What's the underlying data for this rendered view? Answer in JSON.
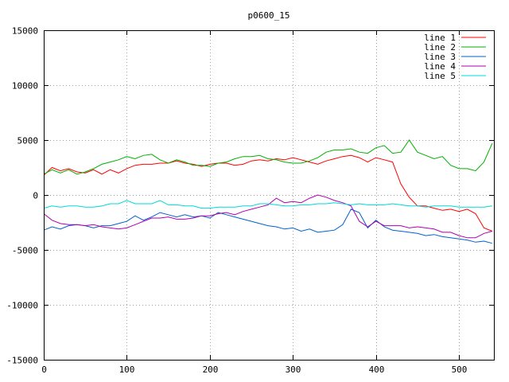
{
  "chart_data": {
    "type": "line",
    "title": "p0600_15",
    "xlabel": "",
    "ylabel": "",
    "xlim": [
      0,
      542
    ],
    "ylim": [
      -15000,
      15000
    ],
    "grid": true,
    "legend_position": "top-right",
    "xticks": [
      0,
      100,
      200,
      300,
      400,
      500
    ],
    "yticks": [
      -15000,
      -10000,
      -5000,
      0,
      5000,
      10000,
      15000
    ],
    "series": [
      {
        "name": "line 1",
        "color": "#ff0000",
        "x": [
          0,
          10,
          20,
          30,
          40,
          50,
          60,
          70,
          80,
          90,
          100,
          110,
          120,
          130,
          140,
          150,
          160,
          170,
          180,
          190,
          200,
          210,
          220,
          230,
          240,
          250,
          260,
          270,
          280,
          290,
          300,
          310,
          320,
          330,
          340,
          350,
          360,
          370,
          380,
          390,
          400,
          410,
          420,
          430,
          440,
          450,
          460,
          470,
          480,
          490,
          500,
          510,
          520,
          530,
          540
        ],
        "y": [
          1800,
          2500,
          2200,
          2400,
          2100,
          2000,
          2300,
          1900,
          2300,
          2000,
          2400,
          2700,
          2800,
          2800,
          2900,
          2900,
          3100,
          2900,
          2800,
          2600,
          2800,
          2900,
          2900,
          2700,
          2800,
          3100,
          3200,
          3100,
          3300,
          3200,
          3400,
          3200,
          3000,
          2800,
          3100,
          3300,
          3500,
          3600,
          3400,
          3000,
          3400,
          3200,
          3000,
          1000,
          -200,
          -1000,
          -1000,
          -1200,
          -1400,
          -1300,
          -1500,
          -1300,
          -1700,
          -3000,
          -3300
        ]
      },
      {
        "name": "line 2",
        "color": "#00b000",
        "x": [
          0,
          10,
          20,
          30,
          40,
          50,
          60,
          70,
          80,
          90,
          100,
          110,
          120,
          130,
          140,
          150,
          160,
          170,
          180,
          190,
          200,
          210,
          220,
          230,
          240,
          250,
          260,
          270,
          280,
          290,
          300,
          310,
          320,
          330,
          340,
          350,
          360,
          370,
          380,
          390,
          400,
          410,
          420,
          430,
          440,
          450,
          460,
          470,
          480,
          490,
          500,
          510,
          520,
          530,
          540
        ],
        "y": [
          1900,
          2300,
          2000,
          2300,
          1900,
          2100,
          2400,
          2800,
          3000,
          3200,
          3500,
          3300,
          3600,
          3700,
          3200,
          2900,
          3200,
          3000,
          2700,
          2700,
          2600,
          2900,
          3000,
          3300,
          3500,
          3500,
          3600,
          3300,
          3200,
          3000,
          2900,
          2900,
          3100,
          3400,
          3900,
          4100,
          4100,
          4200,
          3900,
          3800,
          4300,
          4500,
          3800,
          3900,
          5000,
          3900,
          3600,
          3300,
          3500,
          2700,
          2400,
          2400,
          2200,
          3000,
          4700
        ]
      },
      {
        "name": "line 3",
        "color": "#0060d0",
        "x": [
          0,
          10,
          20,
          30,
          40,
          50,
          60,
          70,
          80,
          90,
          100,
          110,
          120,
          130,
          140,
          150,
          160,
          170,
          180,
          190,
          200,
          210,
          220,
          230,
          240,
          250,
          260,
          270,
          280,
          290,
          300,
          310,
          320,
          330,
          340,
          350,
          360,
          370,
          380,
          390,
          400,
          410,
          420,
          430,
          440,
          450,
          460,
          470,
          480,
          490,
          500,
          510,
          520,
          530,
          540
        ],
        "y": [
          -3200,
          -2900,
          -3100,
          -2800,
          -2700,
          -2800,
          -3000,
          -2800,
          -2800,
          -2600,
          -2400,
          -1900,
          -2300,
          -2000,
          -1600,
          -1800,
          -2000,
          -1800,
          -2000,
          -1900,
          -2100,
          -1600,
          -1800,
          -2000,
          -2200,
          -2400,
          -2600,
          -2800,
          -2900,
          -3100,
          -3000,
          -3300,
          -3100,
          -3400,
          -3300,
          -3200,
          -2700,
          -1300,
          -1600,
          -3000,
          -2300,
          -2900,
          -3200,
          -3300,
          -3400,
          -3500,
          -3700,
          -3600,
          -3800,
          -3900,
          -4000,
          -4100,
          -4300,
          -4200,
          -4400
        ]
      },
      {
        "name": "line 4",
        "color": "#b000b0",
        "x": [
          0,
          10,
          20,
          30,
          40,
          50,
          60,
          70,
          80,
          90,
          100,
          110,
          120,
          130,
          140,
          150,
          160,
          170,
          180,
          190,
          200,
          210,
          220,
          230,
          240,
          250,
          260,
          270,
          280,
          290,
          300,
          310,
          320,
          330,
          340,
          350,
          360,
          370,
          380,
          390,
          400,
          410,
          420,
          430,
          440,
          450,
          460,
          470,
          480,
          490,
          500,
          510,
          520,
          530,
          540
        ],
        "y": [
          -1700,
          -2300,
          -2600,
          -2700,
          -2700,
          -2800,
          -2700,
          -2900,
          -3000,
          -3100,
          -3000,
          -2700,
          -2400,
          -2100,
          -2100,
          -2000,
          -2200,
          -2200,
          -2100,
          -1900,
          -1900,
          -1700,
          -1600,
          -1800,
          -1500,
          -1300,
          -1100,
          -900,
          -300,
          -700,
          -600,
          -700,
          -300,
          0,
          -200,
          -500,
          -700,
          -1000,
          -2400,
          -2900,
          -2400,
          -2800,
          -2800,
          -2800,
          -3000,
          -2900,
          -3000,
          -3100,
          -3400,
          -3400,
          -3700,
          -3900,
          -3900,
          -3500,
          -3300
        ]
      },
      {
        "name": "line 5",
        "color": "#00d8d8",
        "x": [
          0,
          10,
          20,
          30,
          40,
          50,
          60,
          70,
          80,
          90,
          100,
          110,
          120,
          130,
          140,
          150,
          160,
          170,
          180,
          190,
          200,
          210,
          220,
          230,
          240,
          250,
          260,
          270,
          280,
          290,
          300,
          310,
          320,
          330,
          340,
          350,
          360,
          370,
          380,
          390,
          400,
          410,
          420,
          430,
          440,
          450,
          460,
          470,
          480,
          490,
          500,
          510,
          520,
          530,
          540
        ],
        "y": [
          -1200,
          -1000,
          -1100,
          -1000,
          -1000,
          -1100,
          -1100,
          -1000,
          -800,
          -800,
          -500,
          -800,
          -800,
          -800,
          -500,
          -900,
          -900,
          -1000,
          -1000,
          -1200,
          -1200,
          -1100,
          -1100,
          -1100,
          -1000,
          -1000,
          -800,
          -800,
          -900,
          -1000,
          -1000,
          -900,
          -900,
          -800,
          -800,
          -700,
          -800,
          -900,
          -800,
          -900,
          -900,
          -900,
          -800,
          -900,
          -1000,
          -1000,
          -1100,
          -1000,
          -1000,
          -1000,
          -1100,
          -1100,
          -1100,
          -1100,
          -1000
        ]
      }
    ]
  }
}
